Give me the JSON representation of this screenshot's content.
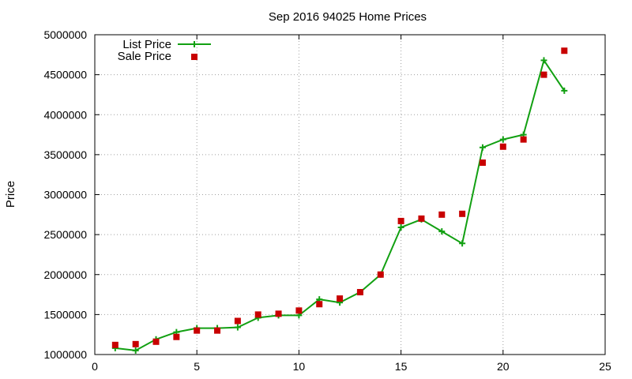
{
  "chart_data": {
    "type": "line",
    "title": "Sep 2016 94025 Home Prices",
    "xlabel": "",
    "ylabel": "Price",
    "xlim": [
      0,
      25
    ],
    "ylim": [
      1000000,
      5000000
    ],
    "xticks": [
      "0",
      "5",
      "10",
      "15",
      "20",
      "25"
    ],
    "yticks": [
      "1000000",
      "1500000",
      "2000000",
      "2500000",
      "3000000",
      "3500000",
      "4000000",
      "4500000",
      "5000000"
    ],
    "grid": true,
    "legend_position": "top-left",
    "series": [
      {
        "name": "List Price",
        "style": "line-with-plus-markers",
        "color": "#12a012",
        "x": [
          1,
          2,
          3,
          4,
          5,
          6,
          7,
          8,
          9,
          10,
          11,
          12,
          13,
          14,
          15,
          16,
          17,
          18,
          19,
          20,
          21,
          22,
          23
        ],
        "y": [
          1080000,
          1050000,
          1190000,
          1280000,
          1330000,
          1330000,
          1340000,
          1460000,
          1490000,
          1490000,
          1690000,
          1650000,
          1780000,
          2000000,
          2590000,
          2690000,
          2540000,
          2390000,
          3590000,
          3690000,
          3750000,
          4680000,
          4300000
        ]
      },
      {
        "name": "Sale Price",
        "style": "square-markers",
        "color": "#c80000",
        "x": [
          1,
          2,
          3,
          4,
          5,
          6,
          7,
          8,
          9,
          10,
          11,
          12,
          13,
          14,
          15,
          16,
          17,
          18,
          19,
          20,
          21,
          22,
          23
        ],
        "y": [
          1120000,
          1130000,
          1160000,
          1220000,
          1300000,
          1300000,
          1420000,
          1500000,
          1510000,
          1550000,
          1630000,
          1700000,
          1780000,
          2000000,
          2670000,
          2700000,
          2750000,
          2760000,
          3400000,
          3600000,
          3690000,
          4500000,
          4800000
        ]
      }
    ]
  }
}
